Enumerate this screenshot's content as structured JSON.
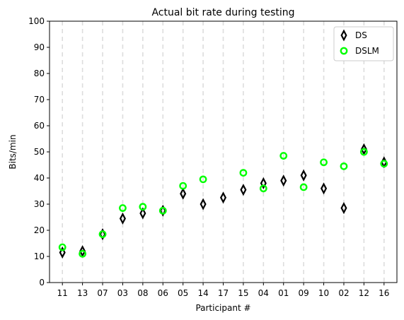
{
  "chart_data": {
    "type": "scatter",
    "title": "Actual bit rate during testing",
    "xlabel": "Participant #",
    "ylabel": "Bits/min",
    "ylim": [
      0,
      100
    ],
    "yticks": [
      0,
      10,
      20,
      30,
      40,
      50,
      60,
      70,
      80,
      90,
      100
    ],
    "grid": "vertical dashed lines at each participant",
    "legend_position": "top-right",
    "categories": [
      "11",
      "13",
      "07",
      "03",
      "08",
      "06",
      "05",
      "14",
      "17",
      "15",
      "04",
      "01",
      "09",
      "10",
      "02",
      "12",
      "16"
    ],
    "series": [
      {
        "name": "DS",
        "marker": "thin-diamond",
        "color": "#000000",
        "values": [
          11.5,
          12,
          18.5,
          24.5,
          26.5,
          27.5,
          34,
          30,
          32.5,
          35.5,
          38,
          39,
          41,
          36,
          28.5,
          51,
          46
        ]
      },
      {
        "name": "DSLM",
        "marker": "hollow-circle",
        "color": "#00ff00",
        "values": [
          13.5,
          11,
          18.5,
          28.5,
          29,
          27.5,
          37,
          39.5,
          null,
          42,
          36,
          48.5,
          36.5,
          46,
          44.5,
          50,
          45.5
        ]
      }
    ]
  }
}
